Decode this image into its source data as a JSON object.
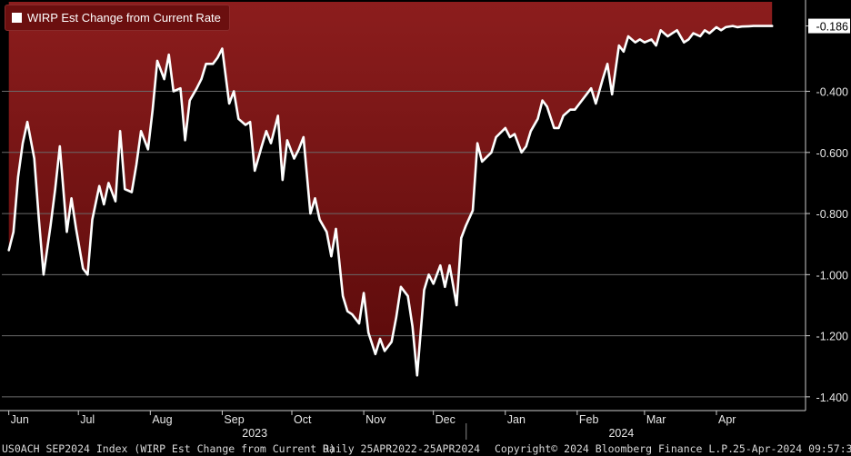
{
  "chart_data": {
    "type": "area",
    "series": [
      {
        "name": "WIRP Est Change from Current Rate",
        "color": "#ffffff",
        "fill_top": "#8c1d1d",
        "fill_bottom": "#5a0a0a",
        "x": [
          "2023-06-01",
          "2023-06-03",
          "2023-06-05",
          "2023-06-07",
          "2023-06-09",
          "2023-06-12",
          "2023-06-14",
          "2023-06-16",
          "2023-06-19",
          "2023-06-21",
          "2023-06-23",
          "2023-06-26",
          "2023-06-28",
          "2023-06-30",
          "2023-07-03",
          "2023-07-05",
          "2023-07-07",
          "2023-07-10",
          "2023-07-12",
          "2023-07-14",
          "2023-07-17",
          "2023-07-19",
          "2023-07-21",
          "2023-07-24",
          "2023-07-26",
          "2023-07-28",
          "2023-07-31",
          "2023-08-02",
          "2023-08-04",
          "2023-08-07",
          "2023-08-09",
          "2023-08-11",
          "2023-08-14",
          "2023-08-16",
          "2023-08-18",
          "2023-08-21",
          "2023-08-23",
          "2023-08-25",
          "2023-08-28",
          "2023-08-30",
          "2023-09-01",
          "2023-09-04",
          "2023-09-06",
          "2023-09-08",
          "2023-09-11",
          "2023-09-13",
          "2023-09-15",
          "2023-09-18",
          "2023-09-20",
          "2023-09-22",
          "2023-09-25",
          "2023-09-27",
          "2023-09-29",
          "2023-10-02",
          "2023-10-04",
          "2023-10-06",
          "2023-10-09",
          "2023-10-11",
          "2023-10-13",
          "2023-10-16",
          "2023-10-18",
          "2023-10-20",
          "2023-10-23",
          "2023-10-25",
          "2023-10-27",
          "2023-10-30",
          "2023-11-01",
          "2023-11-03",
          "2023-11-06",
          "2023-11-08",
          "2023-11-10",
          "2023-11-13",
          "2023-11-15",
          "2023-11-17",
          "2023-11-20",
          "2023-11-22",
          "2023-11-24",
          "2023-11-27",
          "2023-11-29",
          "2023-12-01",
          "2023-12-04",
          "2023-12-06",
          "2023-12-08",
          "2023-12-11",
          "2023-12-13",
          "2023-12-15",
          "2023-12-18",
          "2023-12-20",
          "2023-12-22",
          "2023-12-26",
          "2023-12-28",
          "2024-01-01",
          "2024-01-03",
          "2024-01-05",
          "2024-01-08",
          "2024-01-10",
          "2024-01-12",
          "2024-01-15",
          "2024-01-17",
          "2024-01-19",
          "2024-01-22",
          "2024-01-24",
          "2024-01-26",
          "2024-01-29",
          "2024-01-31",
          "2024-02-02",
          "2024-02-05",
          "2024-02-07",
          "2024-02-09",
          "2024-02-12",
          "2024-02-14",
          "2024-02-16",
          "2024-02-19",
          "2024-02-21",
          "2024-02-23",
          "2024-02-26",
          "2024-02-28",
          "2024-03-01",
          "2024-03-04",
          "2024-03-06",
          "2024-03-08",
          "2024-03-11",
          "2024-03-13",
          "2024-03-15",
          "2024-03-18",
          "2024-03-20",
          "2024-03-22",
          "2024-03-25",
          "2024-03-27",
          "2024-03-29",
          "2024-04-01",
          "2024-04-03",
          "2024-04-05",
          "2024-04-08",
          "2024-04-10",
          "2024-04-12",
          "2024-04-15",
          "2024-04-17",
          "2024-04-19",
          "2024-04-22",
          "2024-04-24",
          "2024-04-25"
        ],
        "values": [
          -0.92,
          -0.86,
          -0.68,
          -0.57,
          -0.5,
          -0.62,
          -0.82,
          -1.0,
          -0.84,
          -0.72,
          -0.58,
          -0.86,
          -0.75,
          -0.85,
          -0.98,
          -1.0,
          -0.82,
          -0.71,
          -0.77,
          -0.7,
          -0.76,
          -0.53,
          -0.72,
          -0.73,
          -0.64,
          -0.53,
          -0.59,
          -0.46,
          -0.3,
          -0.36,
          -0.28,
          -0.4,
          -0.39,
          -0.56,
          -0.43,
          -0.39,
          -0.36,
          -0.31,
          -0.31,
          -0.29,
          -0.26,
          -0.44,
          -0.4,
          -0.49,
          -0.51,
          -0.5,
          -0.66,
          -0.58,
          -0.53,
          -0.57,
          -0.48,
          -0.69,
          -0.56,
          -0.62,
          -0.59,
          -0.55,
          -0.8,
          -0.75,
          -0.82,
          -0.86,
          -0.94,
          -0.85,
          -1.07,
          -1.12,
          -1.13,
          -1.16,
          -1.06,
          -1.19,
          -1.26,
          -1.21,
          -1.25,
          -1.22,
          -1.14,
          -1.04,
          -1.07,
          -1.17,
          -1.33,
          -1.05,
          -1.0,
          -1.03,
          -0.97,
          -1.04,
          -0.97,
          -1.1,
          -0.88,
          -0.84,
          -0.79,
          -0.57,
          -0.63,
          -0.6,
          -0.55,
          -0.52,
          -0.55,
          -0.54,
          -0.6,
          -0.58,
          -0.53,
          -0.49,
          -0.43,
          -0.45,
          -0.52,
          -0.52,
          -0.48,
          -0.46,
          -0.46,
          -0.44,
          -0.41,
          -0.39,
          -0.44,
          -0.36,
          -0.31,
          -0.41,
          -0.25,
          -0.27,
          -0.22,
          -0.24,
          -0.23,
          -0.24,
          -0.23,
          -0.25,
          -0.2,
          -0.22,
          -0.21,
          -0.2,
          -0.24,
          -0.23,
          -0.21,
          -0.22,
          -0.2,
          -0.21,
          -0.19,
          -0.2,
          -0.19,
          -0.186,
          -0.19,
          -0.188,
          -0.187,
          -0.186,
          -0.186,
          -0.186,
          -0.186,
          -0.186
        ]
      }
    ],
    "y_ticks": [
      "-0.400",
      "-0.600",
      "-0.800",
      "-1.000",
      "-1.200",
      "-1.400"
    ],
    "y_tick_values": [
      -0.4,
      -0.6,
      -0.8,
      -1.0,
      -1.2,
      -1.4
    ],
    "ylim": [
      -1.445,
      -0.107
    ],
    "xlim": [
      "2023-05-29",
      "2024-04-30"
    ],
    "x_month_labels": [
      {
        "label": "Jun",
        "date": "2023-06-01"
      },
      {
        "label": "Jul",
        "date": "2023-07-01"
      },
      {
        "label": "Aug",
        "date": "2023-08-01"
      },
      {
        "label": "Sep",
        "date": "2023-09-01"
      },
      {
        "label": "Oct",
        "date": "2023-10-01"
      },
      {
        "label": "Nov",
        "date": "2023-11-01"
      },
      {
        "label": "Dec",
        "date": "2023-12-01"
      },
      {
        "label": "Jan",
        "date": "2024-01-01"
      },
      {
        "label": "Feb",
        "date": "2024-02-01"
      },
      {
        "label": "Mar",
        "date": "2024-03-01"
      },
      {
        "label": "Apr",
        "date": "2024-04-01"
      }
    ],
    "x_year_labels": [
      {
        "label": "2023",
        "date": "2023-09-15"
      },
      {
        "label": "2024",
        "date": "2024-02-20"
      }
    ],
    "last_value_label": "-0.186",
    "last_value": -0.186,
    "grid": true,
    "legend": "top-left"
  },
  "legend": {
    "label": "WIRP Est Change from Current Rate"
  },
  "footer": {
    "ticker": "US0ACH SEP2024 Index (WIRP Est Change from Current R)",
    "range": "Daily 25APR2022-25APR2024",
    "copyright": "Copyright© 2024 Bloomberg Finance L.P.",
    "timestamp": "25-Apr-2024 09:57:31"
  },
  "colors": {
    "background": "#000000",
    "line": "#ffffff",
    "grid": "#6a6a6a",
    "fill_top": "#8c1d1d",
    "fill_bottom": "#5a0a0a"
  }
}
